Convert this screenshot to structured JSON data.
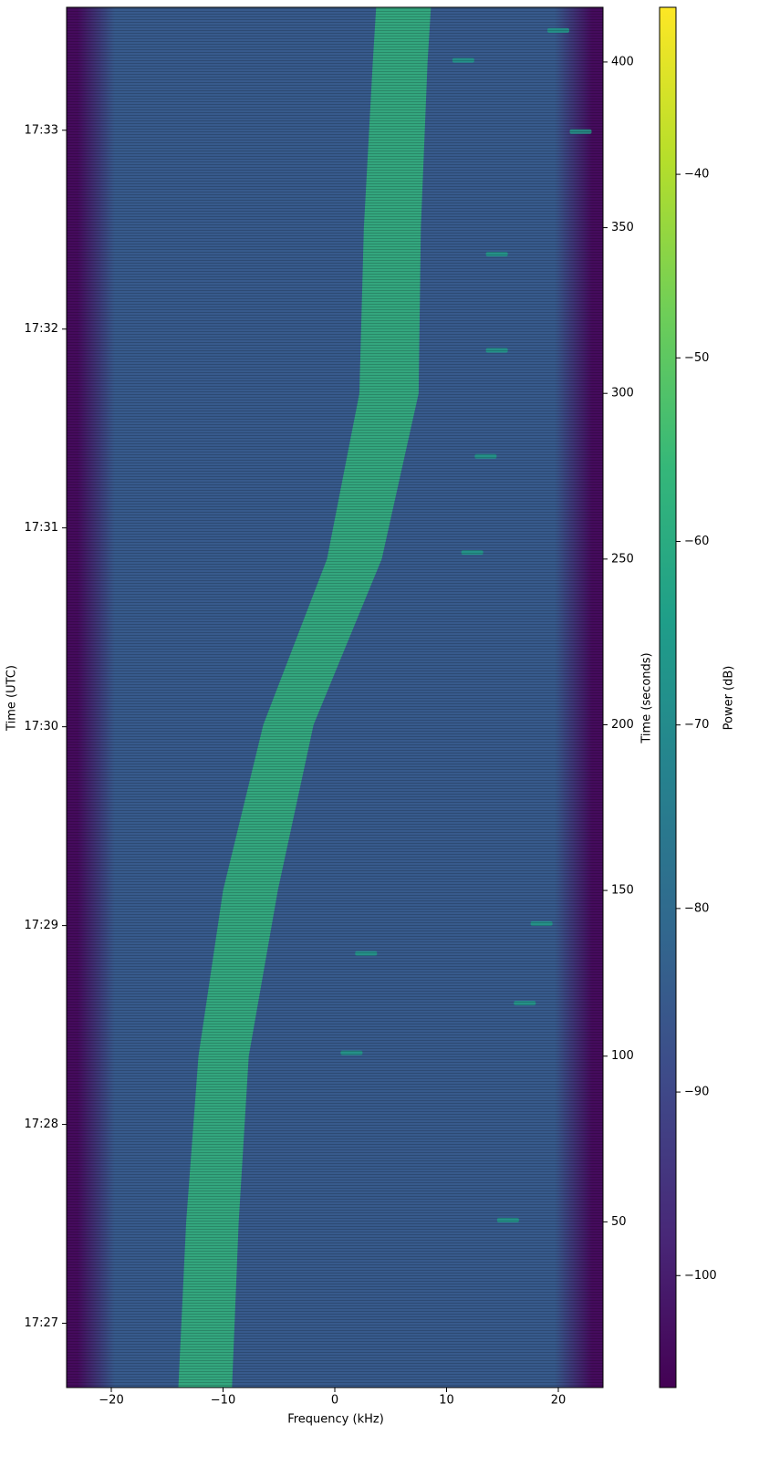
{
  "chart_data": {
    "type": "spectrogram",
    "xlabel": "Frequency (kHz)",
    "xlim": [
      -24,
      24
    ],
    "xticks": [
      {
        "value": -20,
        "label": "−20"
      },
      {
        "value": -10,
        "label": "−10"
      },
      0,
      10,
      20
    ],
    "ylabel": "Time (UTC)",
    "ylim": [
      0,
      416.5
    ],
    "yticks": [
      {
        "value": 19.4,
        "label": "17:27"
      },
      {
        "value": 79.4,
        "label": "17:28"
      },
      {
        "value": 139.4,
        "label": "17:29"
      },
      {
        "value": 199.4,
        "label": "17:30"
      },
      {
        "value": 259.4,
        "label": "17:31"
      },
      {
        "value": 319.4,
        "label": "17:32"
      },
      {
        "value": 379.4,
        "label": "17:33"
      }
    ],
    "y2label": "Time (seconds)",
    "y2lim": [
      0,
      416.5
    ],
    "y2ticks": [
      50,
      100,
      150,
      200,
      250,
      300,
      350,
      400
    ],
    "colorbar": {
      "label": "Power (dB)",
      "colormap": "viridis",
      "lim": [
        -106.1,
        -30.9
      ],
      "ticks": [
        {
          "value": -40,
          "label": "−40"
        },
        {
          "value": -50,
          "label": "−50"
        },
        {
          "value": -60,
          "label": "−60"
        },
        {
          "value": -70,
          "label": "−70"
        },
        {
          "value": -80,
          "label": "−80"
        },
        {
          "value": -90,
          "label": "−90"
        },
        {
          "value": -100,
          "label": "−100"
        }
      ]
    },
    "noise_power": -85,
    "edge_power": -104,
    "signal": {
      "power": -57,
      "time": [
        0,
        50,
        100,
        150,
        200,
        250,
        300,
        350,
        400,
        416.5
      ],
      "low": [
        -14.0,
        -13.3,
        -12.2,
        -10.0,
        -6.4,
        -0.7,
        2.2,
        2.6,
        3.4,
        3.7
      ],
      "high": [
        -9.2,
        -8.6,
        -7.7,
        -5.1,
        -1.9,
        4.2,
        7.5,
        7.7,
        8.3,
        8.6
      ]
    },
    "spurs": {
      "power": -64,
      "freq": [
        20.0,
        11.5,
        22.0,
        14.5,
        14.5,
        13.5,
        12.3,
        18.5,
        2.8,
        17.0,
        1.5,
        15.5
      ],
      "time": [
        409.5,
        400.5,
        379,
        342,
        313,
        281,
        252,
        140,
        131,
        116,
        101,
        50.5
      ]
    }
  }
}
